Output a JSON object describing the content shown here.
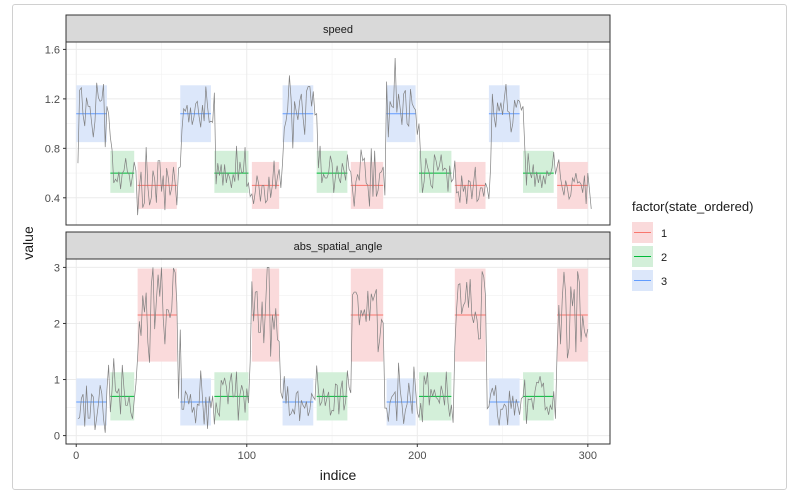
{
  "chart_data": {
    "type": "line",
    "facets": [
      {
        "strip_label": "speed",
        "ylim": [
          0.18,
          1.66
        ],
        "yticks": [
          0.4,
          0.8,
          1.2,
          1.6
        ],
        "ytick_labels": [
          "0.4",
          "0.8",
          "1.2",
          "1.6"
        ],
        "segments": [
          {
            "state": "3",
            "x0": 0,
            "x1": 18,
            "mean": 1.08,
            "lo": 0.85,
            "hi": 1.31
          },
          {
            "state": "2",
            "x0": 20,
            "x1": 34,
            "mean": 0.6,
            "lo": 0.44,
            "hi": 0.78
          },
          {
            "state": "1",
            "x0": 36,
            "x1": 59,
            "mean": 0.5,
            "lo": 0.31,
            "hi": 0.69
          },
          {
            "state": "3",
            "x0": 61,
            "x1": 79,
            "mean": 1.08,
            "lo": 0.85,
            "hi": 1.31
          },
          {
            "state": "2",
            "x0": 81,
            "x1": 101,
            "mean": 0.6,
            "lo": 0.44,
            "hi": 0.78
          },
          {
            "state": "1",
            "x0": 103,
            "x1": 119,
            "mean": 0.5,
            "lo": 0.31,
            "hi": 0.69
          },
          {
            "state": "3",
            "x0": 121,
            "x1": 139,
            "mean": 1.08,
            "lo": 0.85,
            "hi": 1.31
          },
          {
            "state": "2",
            "x0": 141,
            "x1": 159,
            "mean": 0.6,
            "lo": 0.44,
            "hi": 0.78
          },
          {
            "state": "1",
            "x0": 161,
            "x1": 180,
            "mean": 0.5,
            "lo": 0.31,
            "hi": 0.69
          },
          {
            "state": "3",
            "x0": 182,
            "x1": 199,
            "mean": 1.08,
            "lo": 0.85,
            "hi": 1.31
          },
          {
            "state": "2",
            "x0": 201,
            "x1": 220,
            "mean": 0.6,
            "lo": 0.44,
            "hi": 0.78
          },
          {
            "state": "1",
            "x0": 222,
            "x1": 240,
            "mean": 0.5,
            "lo": 0.31,
            "hi": 0.69
          },
          {
            "state": "3",
            "x0": 242,
            "x1": 260,
            "mean": 1.08,
            "lo": 0.85,
            "hi": 1.31
          },
          {
            "state": "2",
            "x0": 262,
            "x1": 280,
            "mean": 0.6,
            "lo": 0.44,
            "hi": 0.78
          },
          {
            "state": "1",
            "x0": 282,
            "x1": 300,
            "mean": 0.5,
            "lo": 0.31,
            "hi": 0.69
          }
        ],
        "series": [
          {
            "values": [
              0.68,
              1.27,
              1.29,
              1.07,
              0.98,
              1.21,
              1.14,
              1.14,
              1.01,
              0.89,
              1.02,
              1.33,
              1.21,
              1.18,
              1.19,
              1.32,
              0.81,
              1.14,
              1.08,
              0.89,
              0.79,
              0.52,
              0.55,
              0.53,
              0.61,
              0.47,
              0.6,
              0.62,
              0.72,
              0.61,
              0.59,
              0.49,
              0.58,
              0.69,
              0.62,
              0.26,
              0.48,
              0.61,
              0.32,
              0.36,
              0.81,
              0.49,
              0.34,
              0.4,
              0.62,
              0.55,
              0.36,
              0.7,
              0.7,
              0.45,
              0.58,
              0.3,
              0.64,
              0.56,
              0.42,
              0.48,
              0.65,
              0.52,
              0.34,
              0.64,
              0.65,
              0.95,
              1.12,
              1.1,
              1.15,
              1.01,
              1.13,
              0.99,
              1.05,
              1.16,
              1.18,
              1.06,
              0.97,
              1.15,
              1.02,
              1.3,
              1.14,
              1.01,
              1.02,
              1.01,
              1.25,
              0.51,
              0.68,
              0.58,
              0.67,
              0.5,
              0.67,
              0.52,
              0.6,
              0.56,
              0.48,
              0.59,
              0.53,
              0.82,
              0.54,
              0.69,
              0.6,
              0.61,
              0.81,
              0.49,
              0.52,
              0.41,
              0.43,
              0.35,
              0.45,
              0.58,
              0.51,
              0.37,
              0.5,
              0.5,
              0.36,
              0.38,
              0.57,
              0.4,
              0.5,
              0.7,
              0.47,
              0.57,
              0.63,
              0.48,
              0.69,
              0.96,
              1.02,
              1.12,
              1.39,
              1.2,
              0.8,
              1.18,
              1.1,
              1.03,
              1.18,
              1.24,
              1.05,
              0.91,
              1.26,
              1.3,
              1.3,
              1.14,
              1.26,
              1.07,
              1.08,
              0.64,
              0.82,
              0.52,
              0.59,
              0.56,
              0.56,
              0.6,
              0.74,
              0.68,
              0.44,
              0.57,
              0.66,
              0.56,
              0.52,
              0.68,
              0.62,
              0.54,
              0.75,
              0.63,
              0.61,
              0.47,
              0.33,
              0.53,
              0.59,
              0.54,
              0.79,
              0.7,
              0.72,
              0.52,
              0.5,
              0.33,
              0.8,
              0.41,
              0.78,
              0.41,
              0.46,
              0.6,
              0.61,
              0.65,
              0.42,
              1.34,
              0.89,
              1.18,
              1.14,
              1.13,
              1.53,
              1.09,
              1.24,
              1.12,
              0.99,
              1.24,
              1.27,
              1.0,
              0.98,
              1.28,
              1.16,
              1.13,
              1.11,
              0.91,
              1.0,
              0.72,
              0.44,
              0.53,
              0.72,
              0.65,
              0.6,
              0.5,
              0.48,
              0.75,
              0.7,
              0.62,
              0.66,
              0.75,
              0.62,
              0.64,
              0.63,
              0.45,
              0.66,
              0.53,
              0.55,
              0.7,
              0.44,
              0.45,
              0.36,
              0.58,
              0.45,
              0.5,
              0.35,
              0.54,
              0.53,
              0.39,
              0.52,
              0.65,
              0.37,
              0.39,
              0.48,
              0.48,
              0.41,
              0.52,
              0.48,
              0.39,
              0.65,
              1.24,
              1.06,
              0.97,
              1.17,
              1.1,
              1.17,
              1.07,
              1.2,
              1.32,
              1.1,
              1.09,
              0.93,
              1.0,
              1.19,
              1.13,
              1.19,
              1.18,
              1.11,
              1.14,
              0.82,
              0.5,
              0.76,
              0.61,
              0.56,
              0.67,
              0.49,
              0.61,
              0.52,
              0.59,
              0.48,
              0.58,
              0.51,
              0.62,
              0.58,
              0.59,
              0.64,
              0.77,
              0.59,
              0.65,
              0.71,
              0.56,
              0.48,
              0.42,
              0.54,
              0.48,
              0.39,
              0.42,
              0.56,
              0.53,
              0.6,
              0.52,
              0.53,
              0.51,
              0.44,
              0.58,
              0.35,
              0.6,
              0.46,
              0.31
            ]
          }
        ]
      },
      {
        "strip_label": "abs_spatial_angle",
        "ylim": [
          -0.15,
          3.15
        ],
        "yticks": [
          0,
          1,
          2,
          3
        ],
        "ytick_labels": [
          "0",
          "1",
          "2",
          "3"
        ],
        "segments": [
          {
            "state": "3",
            "x0": 0,
            "x1": 18,
            "mean": 0.6,
            "lo": 0.18,
            "hi": 1.02
          },
          {
            "state": "2",
            "x0": 20,
            "x1": 34,
            "mean": 0.7,
            "lo": 0.27,
            "hi": 1.13
          },
          {
            "state": "1",
            "x0": 36,
            "x1": 59,
            "mean": 2.15,
            "lo": 1.32,
            "hi": 2.98
          },
          {
            "state": "3",
            "x0": 61,
            "x1": 79,
            "mean": 0.6,
            "lo": 0.18,
            "hi": 1.02
          },
          {
            "state": "2",
            "x0": 81,
            "x1": 101,
            "mean": 0.7,
            "lo": 0.27,
            "hi": 1.13
          },
          {
            "state": "1",
            "x0": 103,
            "x1": 119,
            "mean": 2.15,
            "lo": 1.32,
            "hi": 2.98
          },
          {
            "state": "3",
            "x0": 121,
            "x1": 139,
            "mean": 0.6,
            "lo": 0.18,
            "hi": 1.02
          },
          {
            "state": "2",
            "x0": 141,
            "x1": 159,
            "mean": 0.7,
            "lo": 0.27,
            "hi": 1.13
          },
          {
            "state": "1",
            "x0": 161,
            "x1": 180,
            "mean": 2.15,
            "lo": 1.32,
            "hi": 2.98
          },
          {
            "state": "3",
            "x0": 182,
            "x1": 199,
            "mean": 0.6,
            "lo": 0.18,
            "hi": 1.02
          },
          {
            "state": "2",
            "x0": 201,
            "x1": 220,
            "mean": 0.7,
            "lo": 0.27,
            "hi": 1.13
          },
          {
            "state": "1",
            "x0": 222,
            "x1": 240,
            "mean": 2.15,
            "lo": 1.32,
            "hi": 2.98
          },
          {
            "state": "3",
            "x0": 242,
            "x1": 260,
            "mean": 0.6,
            "lo": 0.18,
            "hi": 1.02
          },
          {
            "state": "2",
            "x0": 262,
            "x1": 280,
            "mean": 0.7,
            "lo": 0.27,
            "hi": 1.13
          },
          {
            "state": "1",
            "x0": 282,
            "x1": 300,
            "mean": 2.15,
            "lo": 1.32,
            "hi": 2.98
          }
        ],
        "series": [
          {
            "values": [
              0.3,
              0.32,
              0.66,
              0.74,
              0.16,
              0.89,
              0.31,
              0.31,
              0.74,
              0.69,
              0.1,
              0.32,
              0.56,
              0.9,
              0.75,
              0.3,
              0.05,
              0.81,
              1.26,
              0.42,
              0.81,
              1.38,
              0.8,
              0.76,
              0.84,
              0.38,
              1.26,
              0.84,
              0.54,
              0.54,
              0.7,
              0.41,
              0.3,
              0.63,
              0.92,
              1.4,
              2.04,
              1.78,
              2.5,
              2.2,
              2.55,
              1.66,
              1.3,
              2.67,
              3.0,
              1.9,
              2.41,
              2.87,
              2.48,
              3.0,
              2.1,
              1.63,
              2.25,
              2.24,
              2.1,
              2.25,
              2.99,
              2.91,
              2.37,
              0.66,
              1.89,
              0.47,
              0.47,
              0.79,
              0.73,
              0.56,
              0.74,
              0.41,
              0.51,
              0.22,
              0.56,
              0.54,
              1.16,
              0.68,
              0.2,
              0.69,
              0.12,
              0.7,
              0.49,
              0.71,
              0.2,
              0.59,
              0.41,
              0.35,
              0.99,
              0.91,
              1.03,
              0.88,
              0.56,
              0.94,
              1.11,
              0.69,
              0.7,
              1.14,
              0.27,
              0.73,
              0.9,
              0.78,
              0.41,
              0.84,
              0.58,
              1.32,
              2.75,
              2.04,
              2.56,
              2.57,
              1.84,
              1.84,
              2.39,
              1.65,
              2.28,
              3.0,
              3.0,
              1.41,
              2.16,
              1.89,
              2.27,
              1.71,
              1.68,
              0.77,
              0.66,
              1.06,
              0.57,
              0.88,
              0.36,
              0.39,
              0.47,
              0.38,
              0.75,
              0.79,
              0.26,
              0.63,
              0.54,
              0.49,
              0.61,
              0.35,
              0.46,
              0.75,
              0.69,
              0.64,
              1.25,
              0.81,
              0.54,
              0.6,
              0.84,
              0.53,
              0.67,
              0.78,
              0.36,
              0.45,
              0.44,
              0.92,
              0.9,
              0.38,
              0.81,
              0.98,
              0.45,
              0.61,
              1.16,
              0.86,
              0.76,
              2.51,
              2.56,
              2.56,
              2.49,
              1.97,
              2.24,
              2.14,
              2.25,
              2.03,
              2.58,
              2.05,
              2.53,
              2.41,
              2.51,
              2.61,
              1.49,
              1.73,
              2.07,
              2.01,
              0.49,
              0.49,
              0.25,
              0.59,
              0.69,
              0.73,
              0.78,
              0.26,
              1.3,
              0.81,
              0.56,
              0.21,
              0.45,
              0.56,
              0.94,
              0.66,
              0.39,
              1.23,
              0.83,
              0.42,
              0.32,
              0.58,
              0.24,
              1.07,
              0.91,
              1.13,
              0.54,
              0.83,
              0.7,
              0.82,
              0.68,
              0.65,
              0.58,
              0.89,
              0.75,
              0.54,
              1.14,
              0.59,
              0.34,
              0.55,
              0.23,
              1.58,
              2.23,
              2.69,
              2.71,
              2.17,
              2.32,
              2.38,
              2.74,
              2.28,
              2.79,
              2.14,
              2.01,
              2.21,
              2.07,
              1.72,
              1.73,
              2.93,
              2.83,
              2.5,
              0.48,
              0.52,
              0.74,
              0.85,
              0.71,
              0.9,
              0.37,
              0.18,
              0.47,
              0.47,
              0.56,
              0.52,
              0.19,
              0.8,
              0.48,
              0.71,
              0.36,
              0.65,
              0.52,
              0.37,
              0.66,
              0.69,
              1.0,
              0.21,
              0.65,
              0.64,
              0.66,
              0.46,
              0.79,
              0.95,
              0.94,
              1.06,
              0.87,
              0.94,
              0.46,
              0.51,
              0.37,
              0.54,
              0.46,
              0.79,
              0.3,
              1.53,
              2.33,
              1.63,
              2.44,
              2.92,
              2.53,
              1.38,
              1.56,
              2.66,
              2.31,
              2.61,
              1.49,
              2.93,
              2.74,
              1.67,
              2.14,
              1.86,
              1.76,
              1.9
            ]
          }
        ]
      }
    ],
    "x_domain": [
      -6,
      313
    ],
    "xticks": [
      0,
      100,
      200,
      300
    ],
    "xtick_labels": [
      "0",
      "100",
      "200",
      "300"
    ],
    "xlabel": "indice",
    "ylabel": "value",
    "line_color": "#808080",
    "grid": true,
    "legend": {
      "title": "factor(state_ordered)",
      "position": "right",
      "entries": [
        {
          "label": "1",
          "color": "#F8766D",
          "fill": "#FADADB"
        },
        {
          "label": "2",
          "color": "#00BA38",
          "fill": "#D3EFD9"
        },
        {
          "label": "3",
          "color": "#619CFF",
          "fill": "#DCE7FA"
        }
      ]
    }
  }
}
